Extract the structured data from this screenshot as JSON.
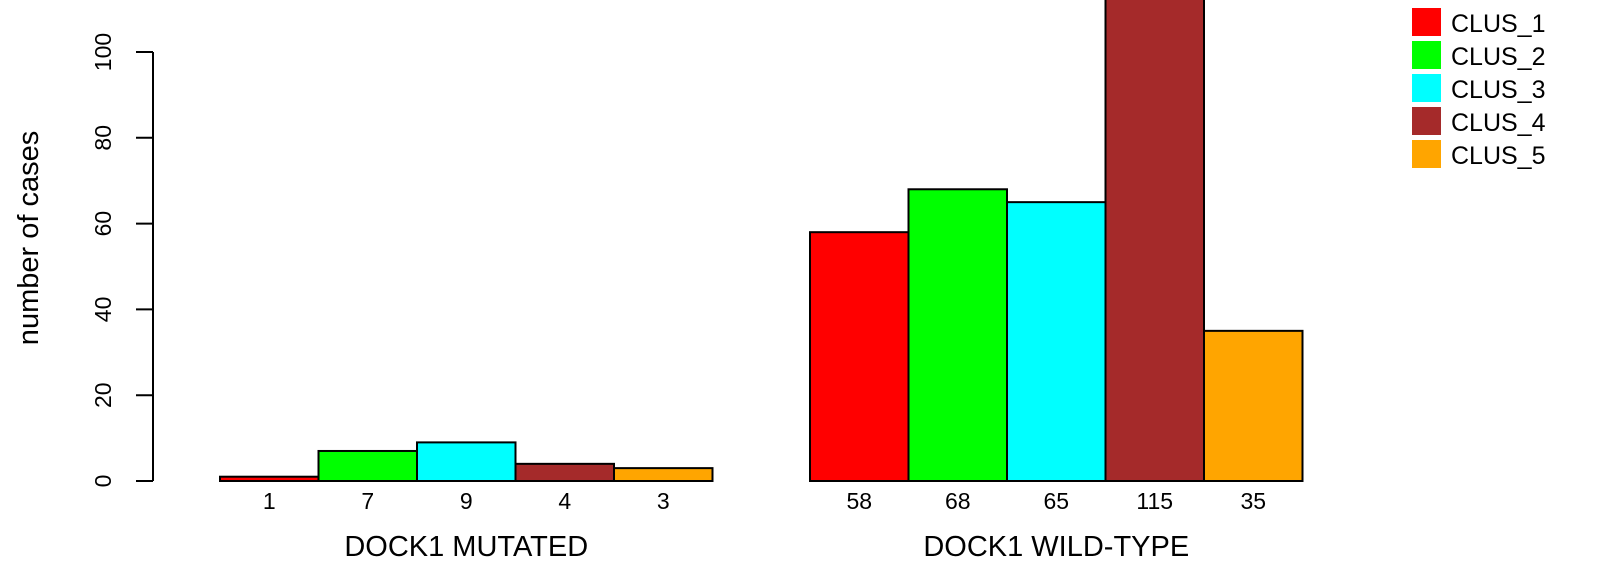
{
  "chart_data": {
    "type": "bar",
    "title": "",
    "xlabel": "",
    "ylabel": "number of cases",
    "ylim": [
      0,
      115
    ],
    "y_ticks": [
      0,
      20,
      40,
      60,
      80,
      100
    ],
    "grid": false,
    "legend_position": "top-right",
    "categories": [
      "DOCK1 MUTATED",
      "DOCK1 WILD-TYPE"
    ],
    "series": [
      {
        "name": "CLUS_1",
        "color": "#ff0000",
        "values": [
          1,
          58
        ]
      },
      {
        "name": "CLUS_2",
        "color": "#00ff00",
        "values": [
          7,
          68
        ]
      },
      {
        "name": "CLUS_3",
        "color": "#00ffff",
        "values": [
          9,
          65
        ]
      },
      {
        "name": "CLUS_4",
        "color": "#a52a2a",
        "values": [
          4,
          115
        ]
      },
      {
        "name": "CLUS_5",
        "color": "#ffa500",
        "values": [
          3,
          35
        ]
      }
    ]
  }
}
